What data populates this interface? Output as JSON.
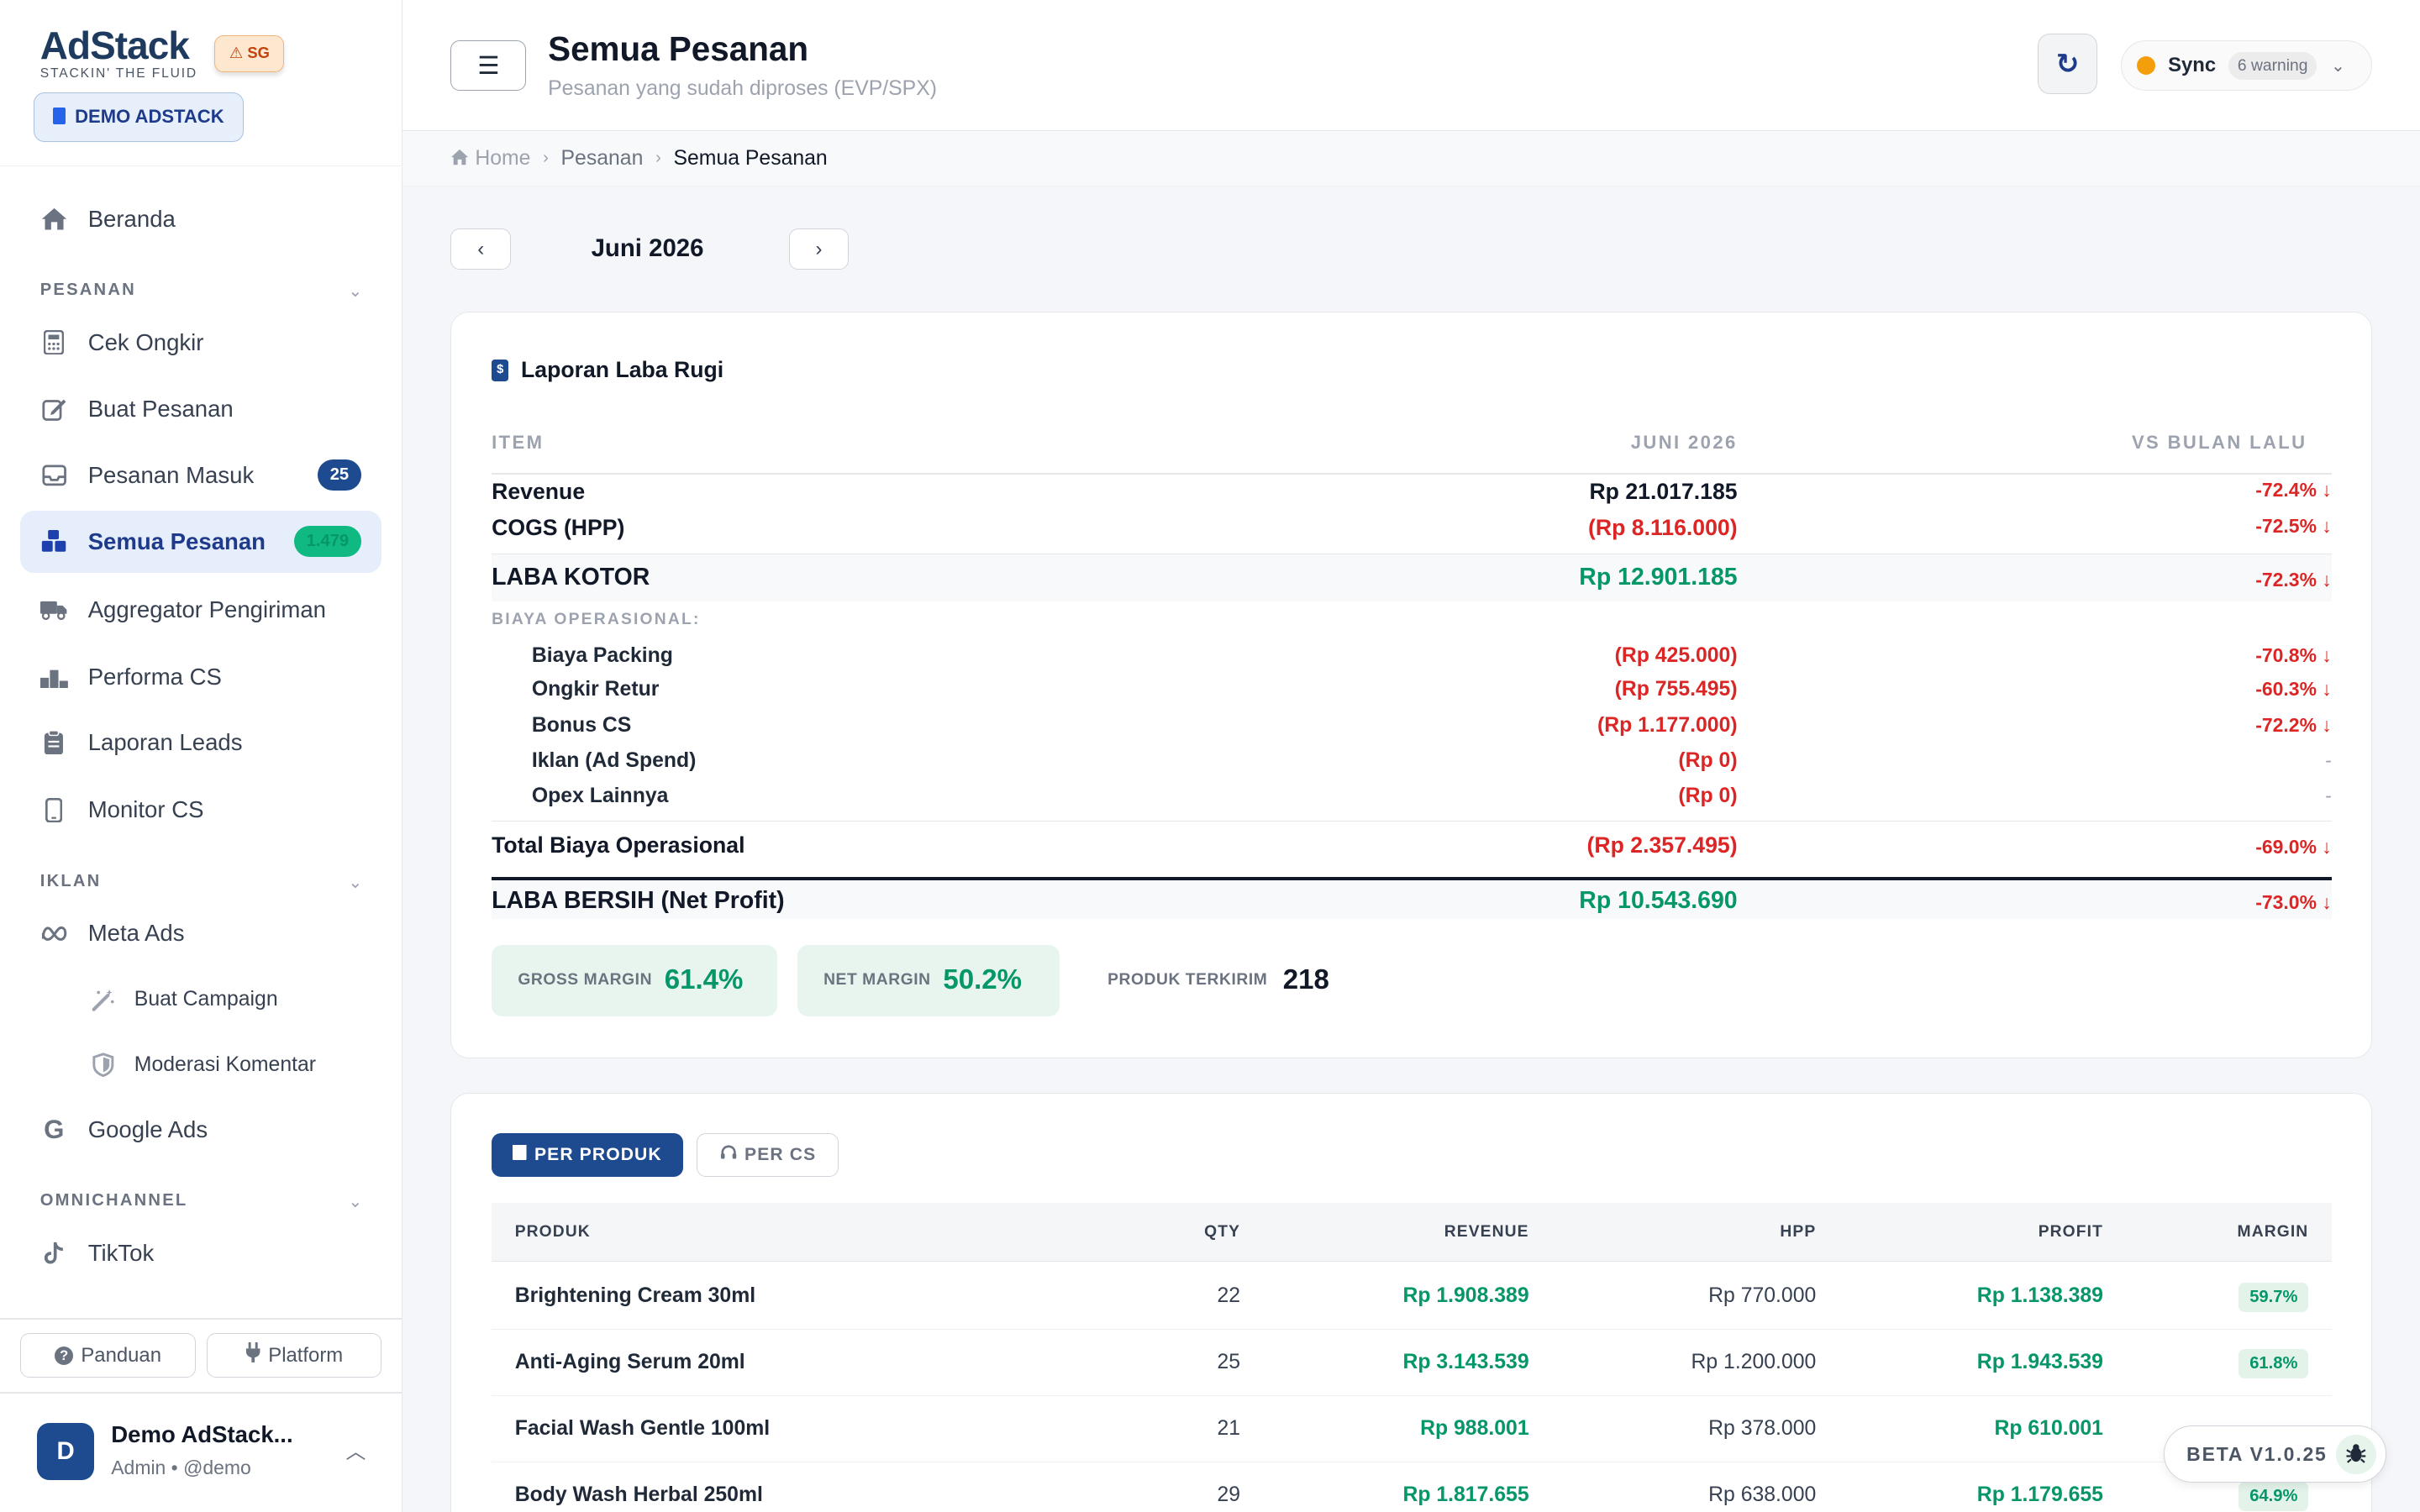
{
  "brand": {
    "name": "AdStack",
    "tagline": "STACKIN' THE FLUID",
    "region": "SG",
    "region_icon": "warning-icon",
    "workspace": "DEMO ADSTACK"
  },
  "nav": {
    "home": "Beranda",
    "section_pesanan": "PESANAN",
    "cek_ongkir": "Cek Ongkir",
    "buat_pesanan": "Buat Pesanan",
    "pesanan_masuk": "Pesanan Masuk",
    "pesanan_masuk_count": "25",
    "semua_pesanan": "Semua Pesanan",
    "semua_pesanan_count": "1.479",
    "aggregator": "Aggregator Pengiriman",
    "performa_cs": "Performa CS",
    "laporan_leads": "Laporan Leads",
    "monitor_cs": "Monitor CS",
    "section_iklan": "IKLAN",
    "meta_ads": "Meta Ads",
    "buat_campaign": "Buat Campaign",
    "moderasi_komentar": "Moderasi Komentar",
    "google_ads": "Google Ads",
    "section_omnichannel": "OMNICHANNEL",
    "tiktok": "TikTok",
    "panduan": "Panduan",
    "platform": "Platform"
  },
  "user": {
    "initial": "D",
    "name": "Demo AdStack...",
    "role": "Admin • @demo"
  },
  "header": {
    "title": "Semua Pesanan",
    "subtitle": "Pesanan yang sudah diproses (EVP/SPX)",
    "sync_label": "Sync",
    "sync_warning": "6 warning"
  },
  "breadcrumb": {
    "home": "Home",
    "level1": "Pesanan",
    "current": "Semua Pesanan"
  },
  "period": {
    "label": "Juni 2026"
  },
  "pl": {
    "title": "Laporan Laba Rugi",
    "col_item": "ITEM",
    "col_period": "JUNI 2026",
    "col_vs": "VS BULAN LALU",
    "revenue": {
      "label": "Revenue",
      "value": "Rp 21.017.185",
      "vs": "-72.4% ↓"
    },
    "cogs": {
      "label": "COGS (HPP)",
      "value": "(Rp 8.116.000)",
      "vs": "-72.5% ↓"
    },
    "gross": {
      "label": "LABA KOTOR",
      "value": "Rp 12.901.185",
      "vs": "-72.3% ↓"
    },
    "opex_header": "BIAYA OPERASIONAL:",
    "packing": {
      "label": "Biaya Packing",
      "value": "(Rp 425.000)",
      "vs": "-70.8% ↓"
    },
    "ongkir_retur": {
      "label": "Ongkir Retur",
      "value": "(Rp 755.495)",
      "vs": "-60.3% ↓"
    },
    "bonus_cs": {
      "label": "Bonus CS",
      "value": "(Rp 1.177.000)",
      "vs": "-72.2% ↓"
    },
    "iklan": {
      "label": "Iklan (Ad Spend)",
      "value": "(Rp 0)",
      "vs": "-"
    },
    "opex_lain": {
      "label": "Opex Lainnya",
      "value": "(Rp 0)",
      "vs": "-"
    },
    "total_opex": {
      "label": "Total Biaya Operasional",
      "value": "(Rp 2.357.495)",
      "vs": "-69.0% ↓"
    },
    "net": {
      "label": "LABA BERSIH (Net Profit)",
      "value": "Rp 10.543.690",
      "vs": "-73.0% ↓"
    },
    "gross_margin_label": "GROSS MARGIN",
    "gross_margin": "61.4%",
    "net_margin_label": "NET MARGIN",
    "net_margin": "50.2%",
    "produk_terkirim_label": "PRODUK TERKIRIM",
    "produk_terkirim": "218"
  },
  "tabs": {
    "per_produk": "PER PRODUK",
    "per_cs": "PER CS"
  },
  "table": {
    "columns": {
      "produk": "PRODUK",
      "qty": "QTY",
      "revenue": "REVENUE",
      "hpp": "HPP",
      "profit": "PROFIT",
      "margin": "MARGIN"
    },
    "rows": [
      {
        "produk": "Brightening Cream 30ml",
        "qty": "22",
        "revenue": "Rp 1.908.389",
        "hpp": "Rp 770.000",
        "profit": "Rp 1.138.389",
        "margin": "59.7%"
      },
      {
        "produk": "Anti-Aging Serum 20ml",
        "qty": "25",
        "revenue": "Rp 3.143.539",
        "hpp": "Rp 1.200.000",
        "profit": "Rp 1.943.539",
        "margin": "61.8%"
      },
      {
        "produk": "Facial Wash Gentle 100ml",
        "qty": "21",
        "revenue": "Rp 988.001",
        "hpp": "Rp 378.000",
        "profit": "Rp 610.001",
        "margin": ""
      },
      {
        "produk": "Body Wash Herbal 250ml",
        "qty": "29",
        "revenue": "Rp 1.817.655",
        "hpp": "Rp 638.000",
        "profit": "Rp 1.179.655",
        "margin": "64.9%"
      }
    ]
  },
  "beta": {
    "label": "BETA V1.0.25",
    "icon": "bug-icon"
  }
}
